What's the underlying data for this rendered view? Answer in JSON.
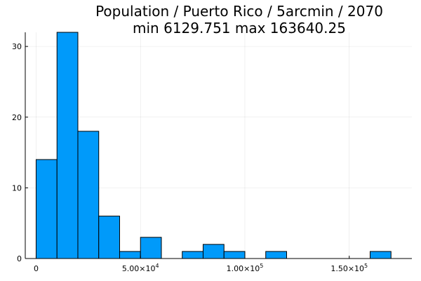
{
  "chart_data": {
    "type": "bar",
    "title": "Population / Puerto Rico / 5arcmin / 2070",
    "subtitle": "min 6129.751  max 163640.25",
    "xlabel": "",
    "ylabel": "",
    "bin_width": 10000,
    "bins": [
      {
        "start": 0,
        "end": 10000,
        "count": 14
      },
      {
        "start": 10000,
        "end": 20000,
        "count": 32
      },
      {
        "start": 20000,
        "end": 30000,
        "count": 18
      },
      {
        "start": 30000,
        "end": 40000,
        "count": 6
      },
      {
        "start": 40000,
        "end": 50000,
        "count": 1
      },
      {
        "start": 50000,
        "end": 60000,
        "count": 3
      },
      {
        "start": 60000,
        "end": 70000,
        "count": 0
      },
      {
        "start": 70000,
        "end": 80000,
        "count": 1
      },
      {
        "start": 80000,
        "end": 90000,
        "count": 2
      },
      {
        "start": 90000,
        "end": 100000,
        "count": 1
      },
      {
        "start": 100000,
        "end": 110000,
        "count": 0
      },
      {
        "start": 110000,
        "end": 120000,
        "count": 1
      },
      {
        "start": 120000,
        "end": 130000,
        "count": 0
      },
      {
        "start": 130000,
        "end": 140000,
        "count": 0
      },
      {
        "start": 140000,
        "end": 150000,
        "count": 0
      },
      {
        "start": 150000,
        "end": 160000,
        "count": 0
      },
      {
        "start": 160000,
        "end": 170000,
        "count": 1
      }
    ],
    "xlim": [
      -5200,
      180000
    ],
    "ylim": [
      0,
      32
    ],
    "x_ticks": [
      {
        "value": 0,
        "mantissa": "0",
        "exponent": ""
      },
      {
        "value": 50000,
        "mantissa": "5.00×10",
        "exponent": "4"
      },
      {
        "value": 100000,
        "mantissa": "1.00×10",
        "exponent": "5"
      },
      {
        "value": 150000,
        "mantissa": "1.50×10",
        "exponent": "5"
      }
    ],
    "y_ticks": [
      {
        "value": 0,
        "label": "0"
      },
      {
        "value": 10,
        "label": "10"
      },
      {
        "value": 20,
        "label": "20"
      },
      {
        "value": 30,
        "label": "30"
      }
    ],
    "bar_color": "#009AFA",
    "grid": true,
    "legend": false
  }
}
